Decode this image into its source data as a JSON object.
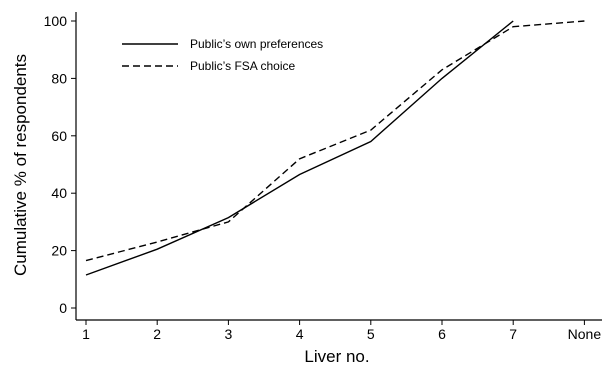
{
  "chart_data": {
    "type": "line",
    "categories": [
      "1",
      "2",
      "3",
      "4",
      "5",
      "6",
      "7",
      "None"
    ],
    "xlabel": "Liver no.",
    "ylabel": "Cumulative % of respondents",
    "ylim": [
      0,
      100
    ],
    "yticks": [
      0,
      20,
      40,
      60,
      80,
      100
    ],
    "grid": false,
    "legend_position": "top-left",
    "series": [
      {
        "name": "Public’s own preferences",
        "style": "solid",
        "color": "#000000",
        "values": [
          11.5,
          20.5,
          31.5,
          46.5,
          58,
          80,
          100,
          null
        ]
      },
      {
        "name": "Public’s FSA choice",
        "style": "dashed",
        "color": "#000000",
        "values": [
          16.5,
          23,
          30,
          52,
          62,
          83,
          98,
          100
        ]
      }
    ]
  }
}
